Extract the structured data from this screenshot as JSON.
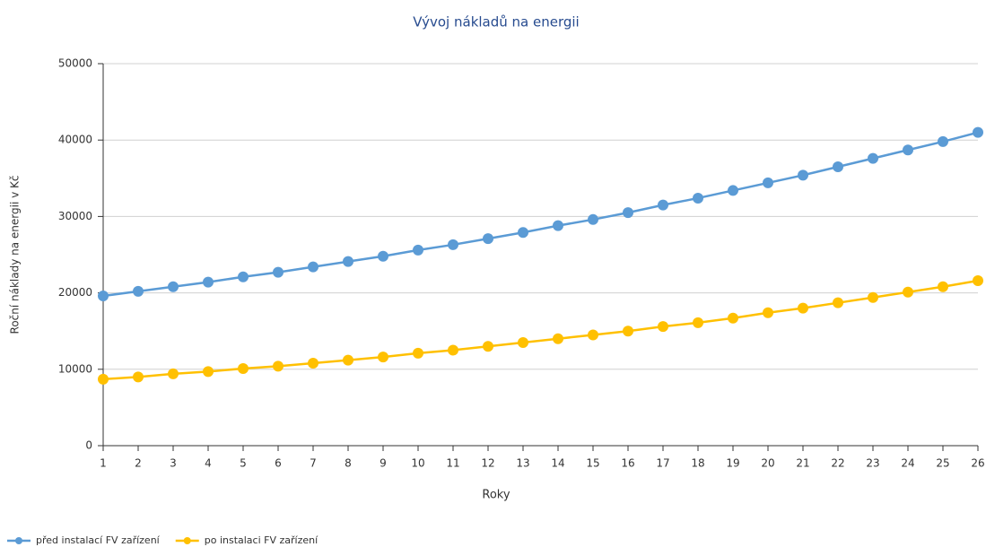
{
  "chart_data": {
    "type": "line",
    "title": "Vývoj nákladů na energii",
    "x_label": "Roky",
    "y_label": "Roční náklady na energii v Kč",
    "x": [
      1,
      2,
      3,
      4,
      5,
      6,
      7,
      8,
      9,
      10,
      11,
      12,
      13,
      14,
      15,
      16,
      17,
      18,
      19,
      20,
      21,
      22,
      23,
      24,
      25,
      26
    ],
    "xlim": [
      1,
      26
    ],
    "ylim": [
      0,
      50000
    ],
    "yticks": [
      0,
      10000,
      20000,
      30000,
      40000,
      50000
    ],
    "grid": true,
    "legend": "bottom-left",
    "series": [
      {
        "name": "před instalací FV zařízení",
        "color": "#5b9bd5",
        "values": [
          19600,
          20200,
          20800,
          21400,
          22100,
          22700,
          23400,
          24100,
          24800,
          25600,
          26300,
          27100,
          27900,
          28800,
          29600,
          30500,
          31500,
          32400,
          33400,
          34400,
          35400,
          36500,
          37600,
          38700,
          39800,
          41000
        ]
      },
      {
        "name": "po instalaci FV zařízení",
        "color": "#ffc000",
        "values": [
          8700,
          9000,
          9400,
          9700,
          10100,
          10400,
          10800,
          11200,
          11600,
          12100,
          12500,
          13000,
          13500,
          14000,
          14500,
          15000,
          15600,
          16100,
          16700,
          17400,
          18000,
          18700,
          19400,
          20100,
          20800,
          21600
        ]
      }
    ]
  }
}
